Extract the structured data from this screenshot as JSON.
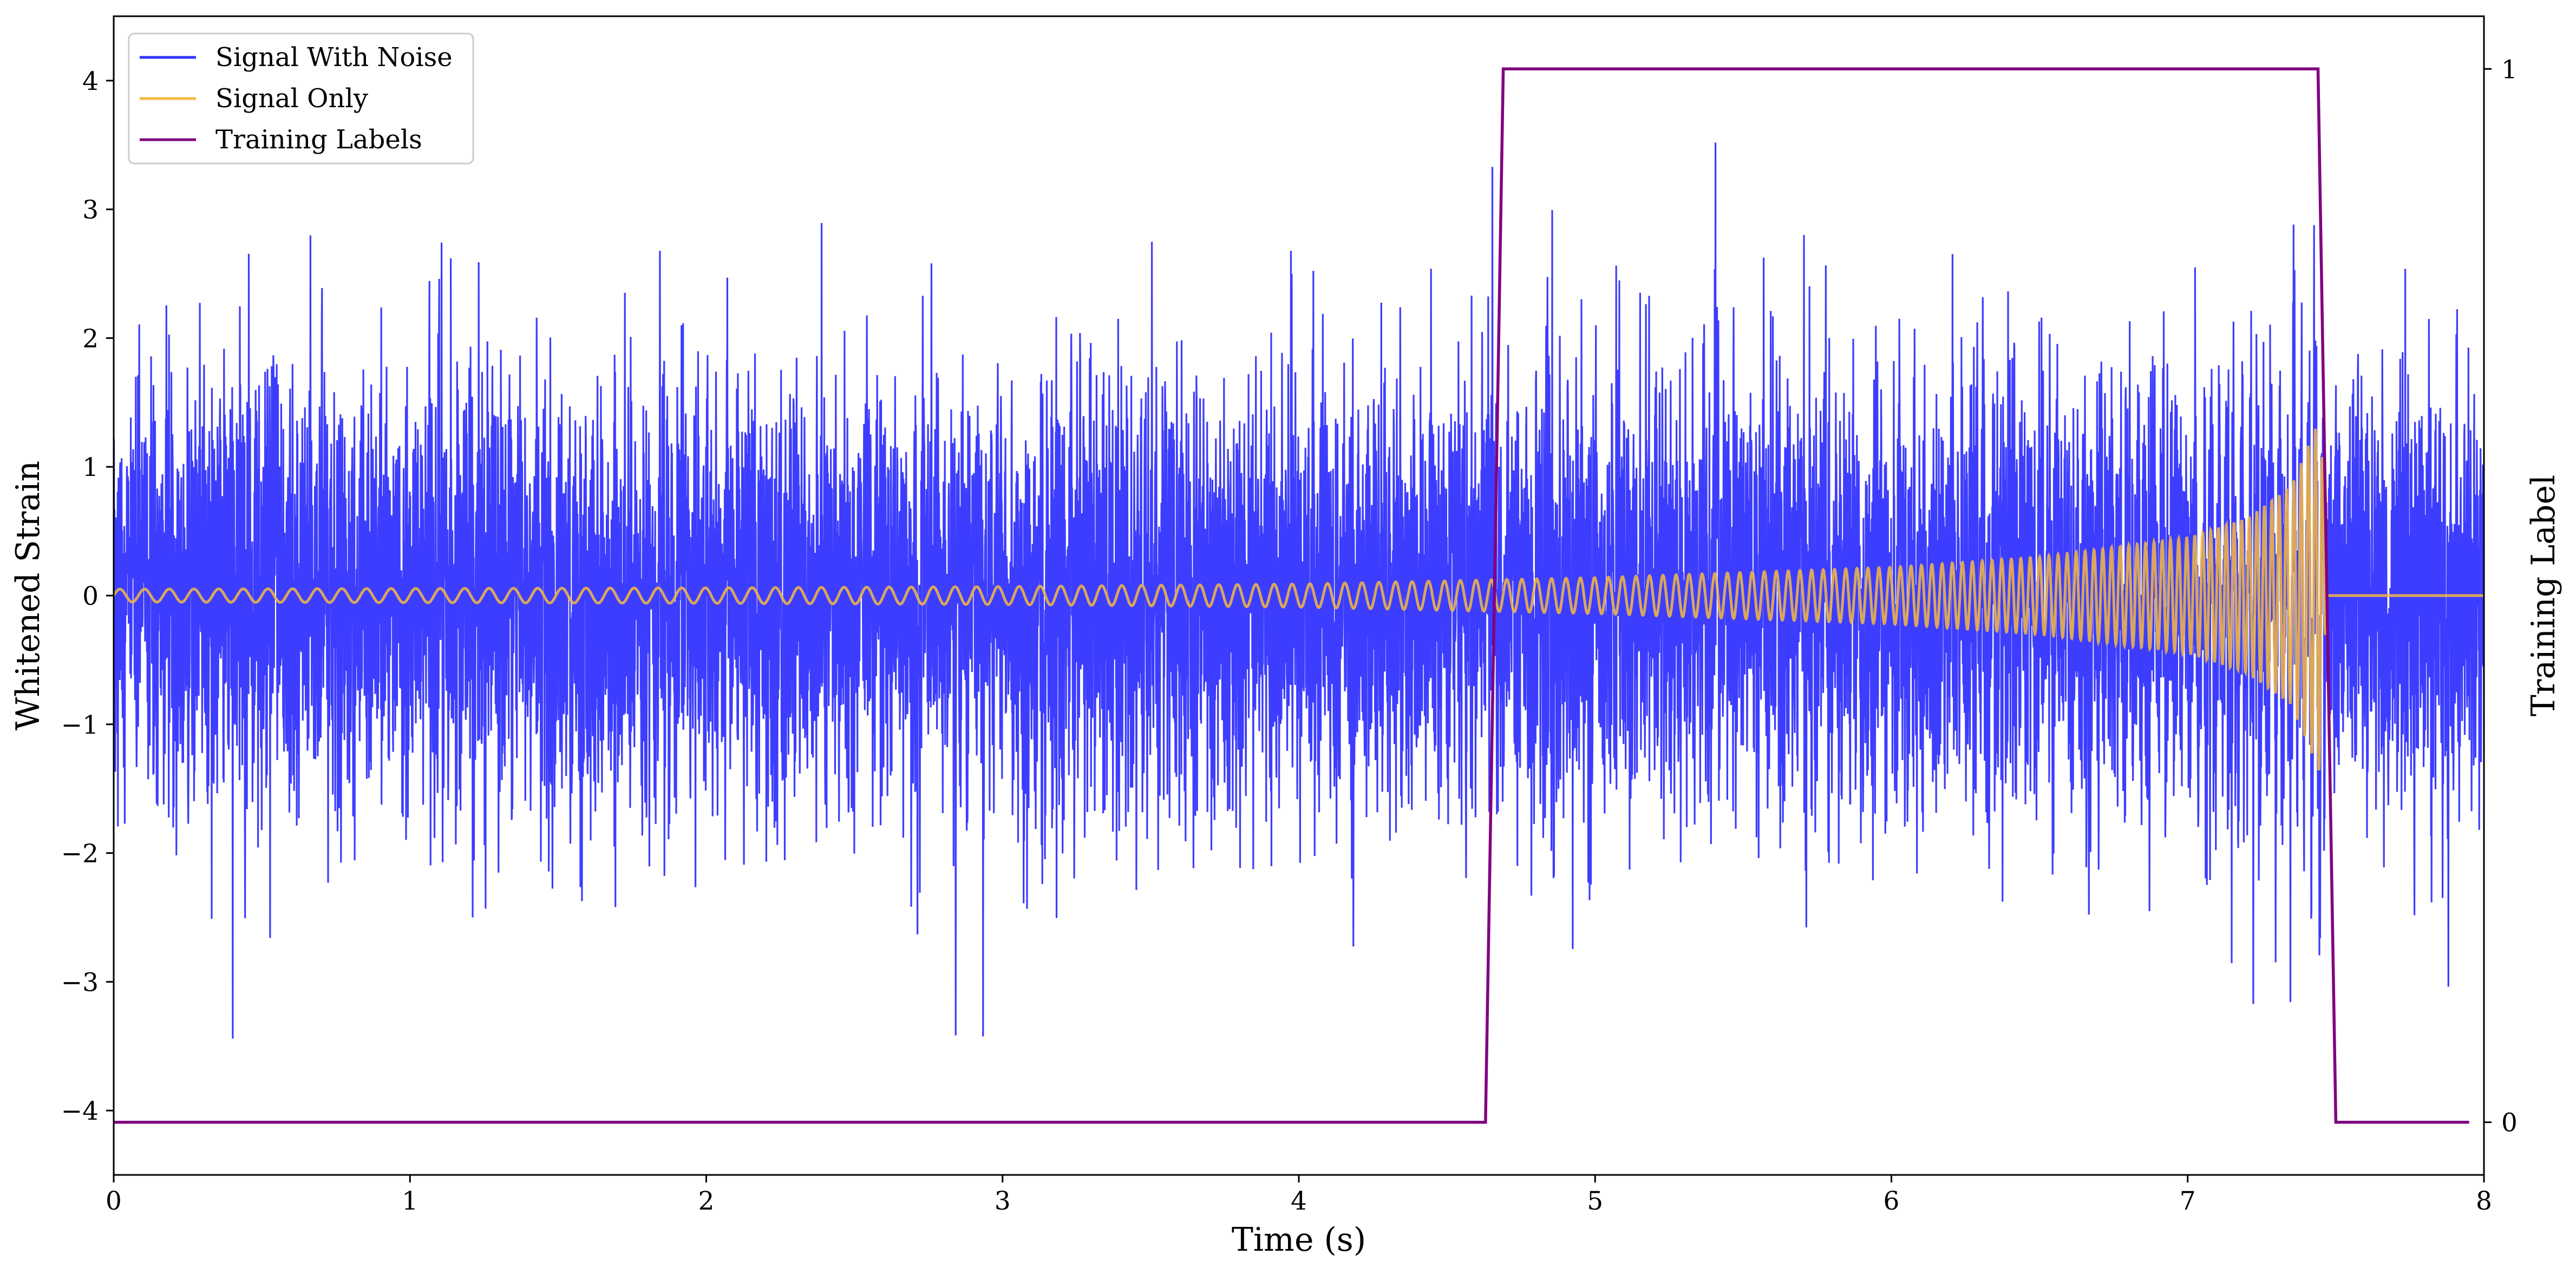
{
  "chart_data": {
    "type": "line",
    "xlabel": "Time (s)",
    "ylabel": "Whitened Strain",
    "ylabel_right": "Training Label",
    "xlim": [
      0,
      8
    ],
    "ylim": [
      -4.5,
      4.5
    ],
    "ylim_right": [
      -0.05,
      1.05
    ],
    "x_ticks": [
      0,
      1,
      2,
      3,
      4,
      5,
      6,
      7,
      8
    ],
    "y_ticks": [
      -4,
      -3,
      -2,
      -1,
      0,
      1,
      2,
      3,
      4
    ],
    "y_tick_labels": [
      "−4",
      "−3",
      "−2",
      "−1",
      "0",
      "1",
      "2",
      "3",
      "4"
    ],
    "y_ticks_right": [
      0,
      1
    ],
    "grid": false,
    "legend_position": "top-left",
    "series": [
      {
        "name": "Signal With Noise",
        "color": "#3333ff",
        "axis": "left",
        "description_values": {
          "noise_sigma": 0.85,
          "x_range": [
            0,
            8
          ]
        }
      },
      {
        "name": "Signal Only",
        "color": "#f5b942",
        "axis": "left",
        "chirp_envelope": {
          "x": [
            0,
            1,
            2,
            3,
            4,
            4.6,
            5,
            6,
            6.5,
            7,
            7.2,
            7.35,
            7.45,
            7.47,
            7.5,
            8
          ],
          "amplitude": [
            0.05,
            0.055,
            0.06,
            0.07,
            0.09,
            0.12,
            0.14,
            0.22,
            0.3,
            0.45,
            0.6,
            0.85,
            1.4,
            0,
            0,
            0
          ]
        }
      },
      {
        "name": "Training Labels",
        "color": "#800080",
        "axis": "right",
        "x": [
          0,
          4.63,
          4.69,
          7.44,
          7.5,
          7.95
        ],
        "y": [
          0,
          0,
          1,
          1,
          0,
          0
        ]
      }
    ]
  }
}
